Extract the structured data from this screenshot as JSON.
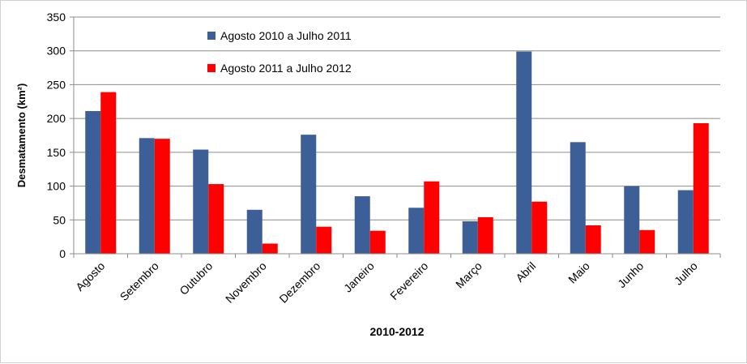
{
  "chart_data": {
    "type": "bar",
    "title": "",
    "xlabel": "2010-2012",
    "ylabel": "Desmatamento (km²)",
    "ylim": [
      0,
      350
    ],
    "yticks": [
      0,
      50,
      100,
      150,
      200,
      250,
      300,
      350
    ],
    "grid": true,
    "legend_position": "top-left",
    "categories": [
      "Agosto",
      "Setembro",
      "Outubro",
      "Novembro",
      "Dezembro",
      "Janeiro",
      "Fevereiro",
      "Março",
      "Abril",
      "Maio",
      "Junho",
      "Julho"
    ],
    "series": [
      {
        "name": "Agosto 2010 a Julho 2011",
        "color": "#3b5f96",
        "values": [
          211,
          171,
          154,
          65,
          176,
          85,
          68,
          48,
          299,
          165,
          100,
          94
        ]
      },
      {
        "name": "Agosto 2011 a Julho 2012",
        "color": "#ff0000",
        "values": [
          239,
          170,
          103,
          15,
          40,
          34,
          107,
          54,
          77,
          42,
          35,
          193
        ]
      }
    ]
  }
}
